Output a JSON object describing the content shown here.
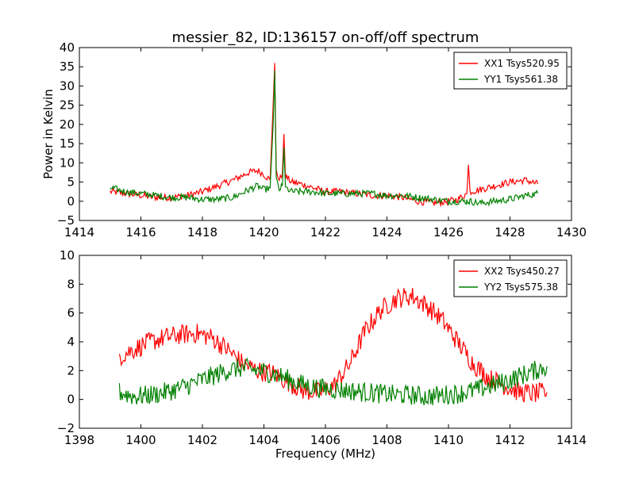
{
  "figure": {
    "title": "messier_82, ID:136157 on-off/off spectrum"
  },
  "chart_data": [
    {
      "type": "line",
      "title": "messier_82, ID:136157 on-off/off spectrum",
      "xlabel": "",
      "ylabel": "Power in Kelvin",
      "xlim": [
        1414,
        1430
      ],
      "ylim": [
        -5,
        40
      ],
      "xticks": [
        "1414",
        "1416",
        "1418",
        "1420",
        "1422",
        "1424",
        "1426",
        "1428",
        "1430"
      ],
      "yticks": [
        "−5",
        "0",
        "5",
        "10",
        "15",
        "20",
        "25",
        "30",
        "35",
        "40"
      ],
      "grid": false,
      "legend_position": "top-right",
      "series": [
        {
          "name": "XX1 Tsys520.95",
          "color": "#ff0000",
          "x": [
            1415.0,
            1415.5,
            1416.0,
            1416.5,
            1417.0,
            1417.5,
            1418.0,
            1418.5,
            1419.0,
            1419.5,
            1419.8,
            1420.0,
            1420.2,
            1420.3,
            1420.35,
            1420.4,
            1420.5,
            1420.6,
            1420.65,
            1420.7,
            1420.9,
            1421.2,
            1421.6,
            1422.0,
            1422.5,
            1423.0,
            1423.5,
            1424.0,
            1424.5,
            1425.0,
            1425.5,
            1426.0,
            1426.3,
            1426.6,
            1426.65,
            1426.7,
            1427.0,
            1427.5,
            1428.0,
            1428.5,
            1428.9
          ],
          "y": [
            2.5,
            2.0,
            1.5,
            1.0,
            1.0,
            1.5,
            2.5,
            4.0,
            5.5,
            7.5,
            8.0,
            7.0,
            5.5,
            25.0,
            36.0,
            8.0,
            5.5,
            7.0,
            17.5,
            6.5,
            5.0,
            4.5,
            3.5,
            2.5,
            2.5,
            2.0,
            1.5,
            1.5,
            1.0,
            0.0,
            -0.5,
            0.0,
            0.5,
            2.0,
            9.5,
            2.5,
            3.0,
            4.0,
            5.0,
            5.5,
            4.5
          ]
        },
        {
          "name": "YY1 Tsys561.38",
          "color": "#008000",
          "x": [
            1415.0,
            1415.5,
            1416.0,
            1416.5,
            1417.0,
            1417.5,
            1418.0,
            1418.5,
            1419.0,
            1419.5,
            1419.8,
            1420.0,
            1420.2,
            1420.3,
            1420.35,
            1420.4,
            1420.5,
            1420.6,
            1420.65,
            1420.7,
            1420.9,
            1421.2,
            1421.6,
            1422.0,
            1422.5,
            1423.0,
            1423.5,
            1424.0,
            1424.5,
            1425.0,
            1425.5,
            1426.0,
            1426.3,
            1426.6,
            1426.65,
            1426.7,
            1427.0,
            1427.5,
            1428.0,
            1428.5,
            1428.9
          ],
          "y": [
            3.5,
            2.5,
            2.0,
            1.5,
            1.0,
            1.0,
            0.5,
            0.5,
            1.0,
            3.0,
            4.0,
            3.0,
            3.5,
            20.0,
            34.0,
            5.5,
            3.0,
            4.0,
            14.0,
            3.5,
            2.5,
            2.5,
            2.5,
            2.0,
            2.0,
            2.0,
            2.0,
            1.5,
            1.5,
            1.0,
            0.5,
            0.0,
            0.0,
            0.0,
            0.0,
            0.0,
            -0.5,
            0.0,
            0.5,
            1.5,
            2.0
          ]
        }
      ]
    },
    {
      "type": "line",
      "title": "",
      "xlabel": "Frequency (MHz)",
      "ylabel": "",
      "xlim": [
        1398,
        1414
      ],
      "ylim": [
        -2,
        10
      ],
      "xticks": [
        "1398",
        "1400",
        "1402",
        "1404",
        "1406",
        "1408",
        "1410",
        "1412",
        "1414"
      ],
      "yticks": [
        "−2",
        "0",
        "2",
        "4",
        "6",
        "8",
        "10"
      ],
      "grid": false,
      "legend_position": "top-right",
      "series": [
        {
          "name": "XX2 Tsys450.27",
          "color": "#ff0000",
          "x": [
            1399.3,
            1399.8,
            1400.3,
            1400.8,
            1401.3,
            1401.8,
            1402.3,
            1402.8,
            1403.3,
            1403.8,
            1404.3,
            1404.8,
            1405.3,
            1405.8,
            1406.3,
            1406.8,
            1407.3,
            1407.8,
            1408.3,
            1408.8,
            1409.3,
            1409.8,
            1410.3,
            1410.8,
            1411.3,
            1411.8,
            1412.3,
            1412.8,
            1413.2
          ],
          "y": [
            3.0,
            3.5,
            4.0,
            4.3,
            4.5,
            4.6,
            4.3,
            3.5,
            2.5,
            2.0,
            1.8,
            1.2,
            0.6,
            0.5,
            1.0,
            2.5,
            4.8,
            6.2,
            7.0,
            7.2,
            6.5,
            5.5,
            4.0,
            2.5,
            1.5,
            1.0,
            0.5,
            0.4,
            0.5
          ]
        },
        {
          "name": "YY2 Tsys575.38",
          "color": "#008000",
          "x": [
            1399.3,
            1399.8,
            1400.3,
            1400.8,
            1401.3,
            1401.8,
            1402.3,
            1402.8,
            1403.3,
            1403.8,
            1404.3,
            1404.8,
            1405.3,
            1405.8,
            1406.3,
            1406.8,
            1407.3,
            1407.8,
            1408.3,
            1408.8,
            1409.3,
            1409.8,
            1410.3,
            1410.8,
            1411.3,
            1411.8,
            1412.3,
            1412.8,
            1413.2
          ],
          "y": [
            0.5,
            0.2,
            0.3,
            0.5,
            0.8,
            1.2,
            1.6,
            2.0,
            2.2,
            2.0,
            1.8,
            1.4,
            1.0,
            0.8,
            0.7,
            0.6,
            0.5,
            0.4,
            0.3,
            0.3,
            0.2,
            0.3,
            0.4,
            0.6,
            0.9,
            1.2,
            1.6,
            2.0,
            2.3
          ]
        }
      ]
    }
  ]
}
